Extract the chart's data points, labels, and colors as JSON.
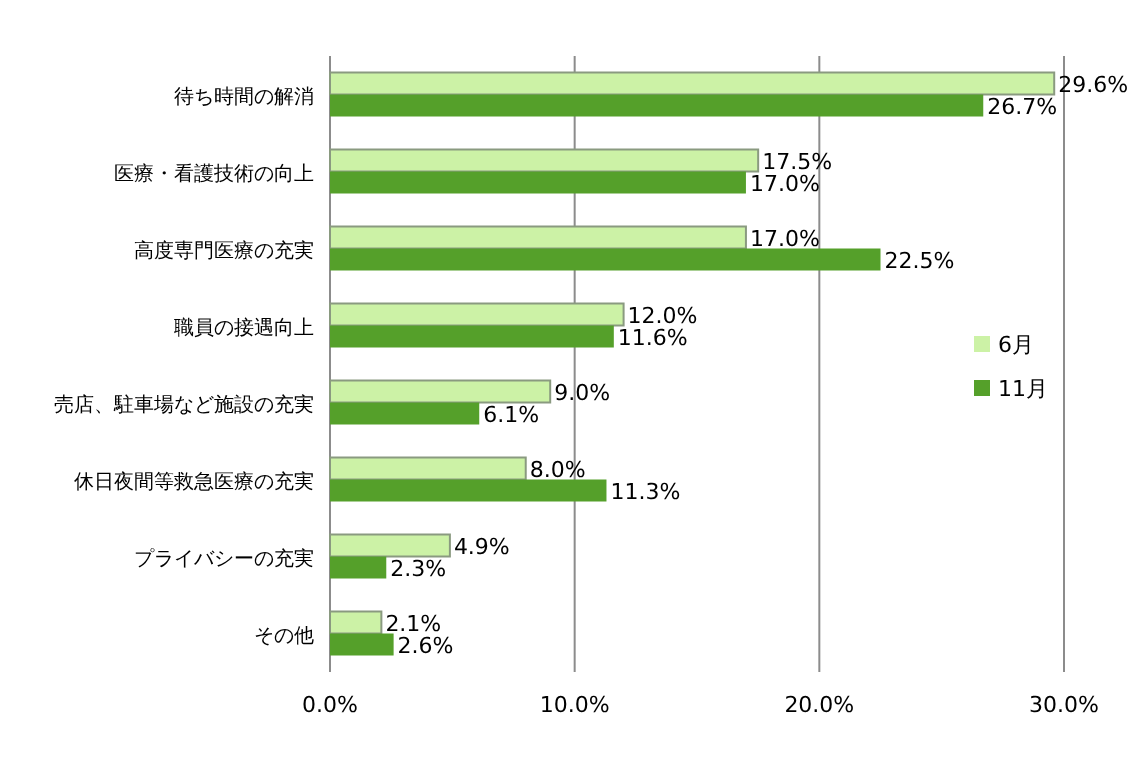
{
  "chart_data": {
    "type": "bar",
    "orientation": "horizontal",
    "categories": [
      "待ち時間の解消",
      "医療・看護技術の向上",
      "高度専門医療の充実",
      "職員の接遇向上",
      "売店、駐車場など施設の充実",
      "休日夜間等救急医療の充実",
      "プライバシーの充実",
      "その他"
    ],
    "series": [
      {
        "name": "6月",
        "color": "#ccf2a6",
        "values": [
          29.6,
          17.5,
          17.0,
          12.0,
          9.0,
          8.0,
          4.9,
          2.1
        ],
        "value_labels": [
          "29.6%",
          "17.5%",
          "17.0%",
          "12.0%",
          "9.0%",
          "8.0%",
          "4.9%",
          "2.1%"
        ]
      },
      {
        "name": "11月",
        "color": "#55a02a",
        "values": [
          26.7,
          17.0,
          22.5,
          11.6,
          6.1,
          11.3,
          2.3,
          2.6
        ],
        "value_labels": [
          "26.7%",
          "17.0%",
          "22.5%",
          "11.6%",
          "6.1%",
          "11.3%",
          "2.3%",
          "2.6%"
        ]
      }
    ],
    "xlim": [
      0,
      30
    ],
    "xticks": [
      {
        "value": 0,
        "label": "0.0%"
      },
      {
        "value": 10,
        "label": "10.0%"
      },
      {
        "value": 20,
        "label": "20.0%"
      },
      {
        "value": 30,
        "label": "30.0%"
      }
    ],
    "grid": "x",
    "legend": "right"
  }
}
